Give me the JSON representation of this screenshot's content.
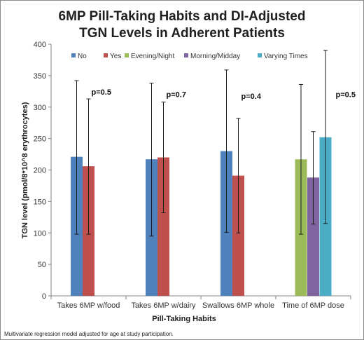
{
  "chart_data": {
    "type": "bar",
    "title_lines": [
      "6MP Pill-Taking Habits and DI-Adjusted",
      "TGN Levels in Adherent Patients"
    ],
    "xlabel": "Pill-Taking Habits",
    "ylabel": "TGN level (pmol/8*10^8 erythrocytes)",
    "ylim": [
      0,
      400
    ],
    "yticks": [
      0,
      50,
      100,
      150,
      200,
      250,
      300,
      350,
      400
    ],
    "grid": false,
    "legend_position": "top",
    "categories": [
      "Takes 6MP w/food",
      "Takes 6MP  w/dairy",
      "Swallows 6MP whole",
      "Time of 6MP dose"
    ],
    "series": [
      {
        "name": "No",
        "color": "#4f81bd",
        "values": [
          221,
          217,
          230,
          null
        ],
        "error_upper": [
          342,
          338,
          359,
          null
        ],
        "error_lower": [
          98,
          95,
          101,
          null
        ]
      },
      {
        "name": "Yes",
        "color": "#c0504d",
        "values": [
          206,
          220,
          191,
          null
        ],
        "error_upper": [
          313,
          308,
          282,
          null
        ],
        "error_lower": [
          98,
          132,
          100,
          null
        ]
      },
      {
        "name": "Evening/Night",
        "color": "#9bbb59",
        "values": [
          null,
          null,
          null,
          217
        ],
        "error_upper": [
          null,
          null,
          null,
          336
        ],
        "error_lower": [
          null,
          null,
          null,
          98
        ]
      },
      {
        "name": "Morning/Midday",
        "color": "#8064a2",
        "values": [
          null,
          null,
          null,
          188
        ],
        "error_upper": [
          null,
          null,
          null,
          261
        ],
        "error_lower": [
          null,
          null,
          null,
          114
        ]
      },
      {
        "name": "Varying Times",
        "color": "#4bacc6",
        "values": [
          null,
          null,
          null,
          252
        ],
        "error_upper": [
          null,
          null,
          null,
          390
        ],
        "error_lower": [
          null,
          null,
          null,
          115
        ]
      }
    ],
    "annotations": [
      "p=0.5",
      "p=0.7",
      "p=0.4",
      "p=0.5"
    ]
  },
  "footnote": "Multivariate regression model adjusted for age at study participation."
}
